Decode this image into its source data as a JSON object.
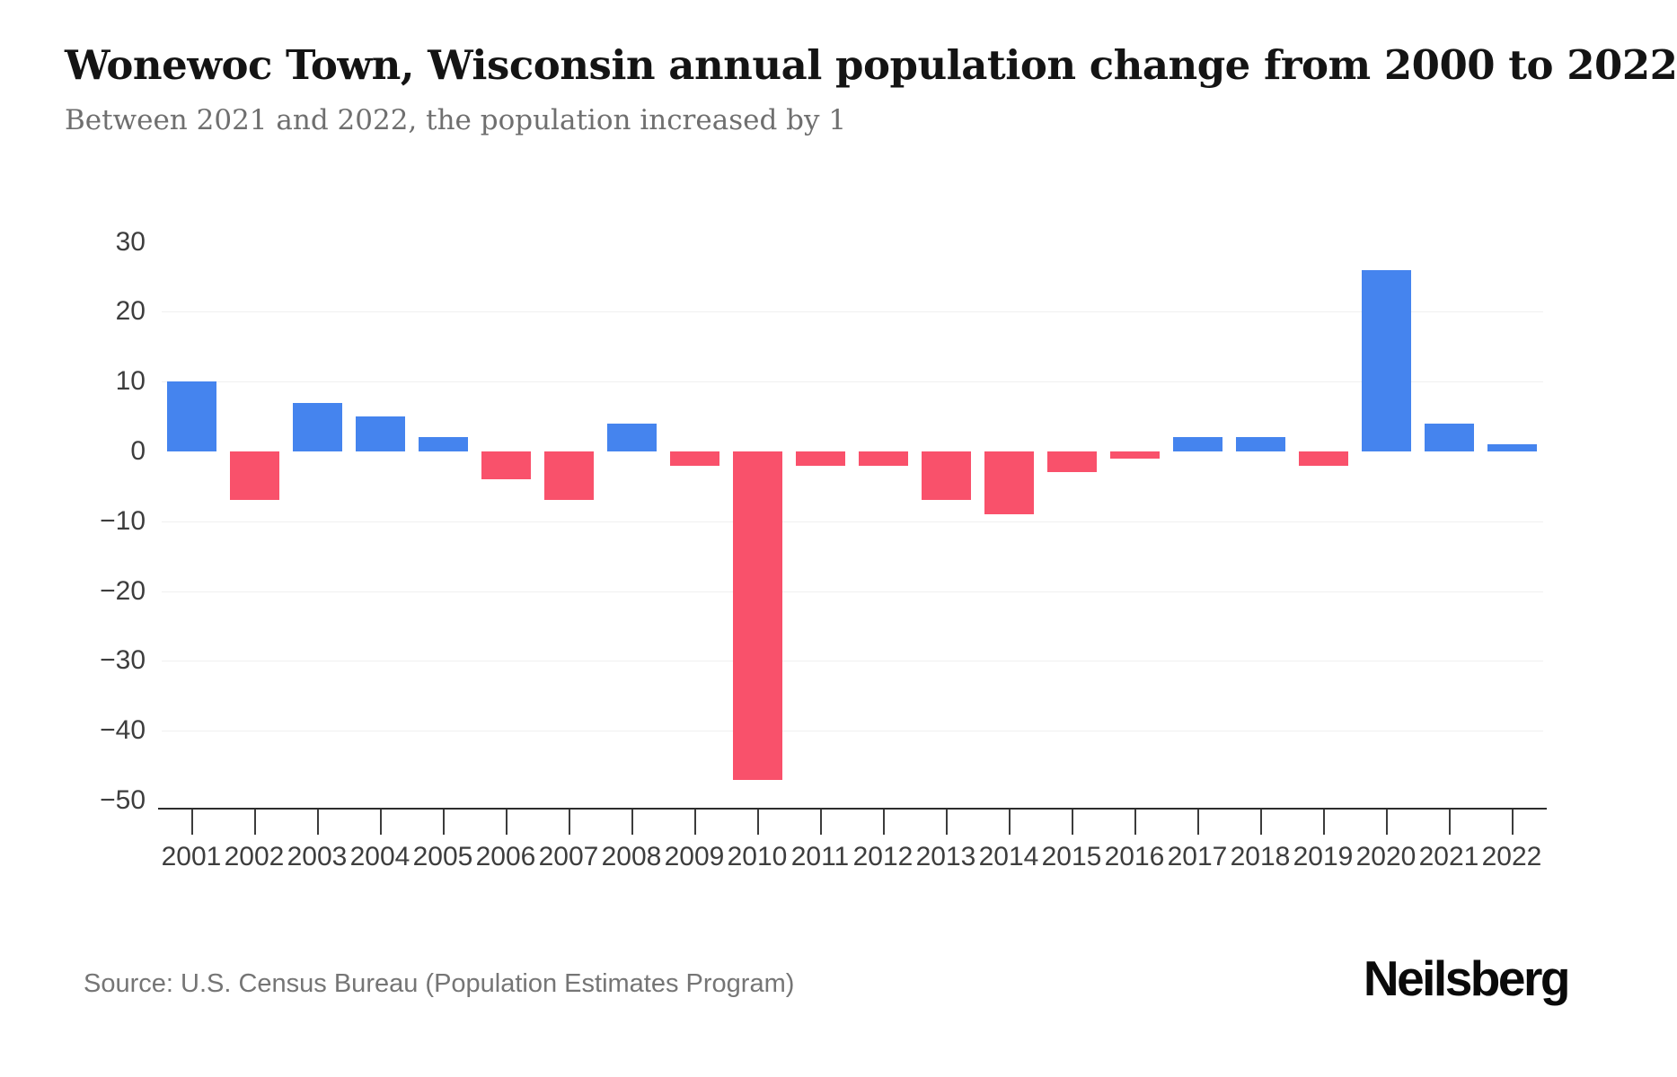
{
  "header": {
    "title": "Wonewoc Town, Wisconsin annual population change from 2000 to 2022",
    "subtitle": "Between 2021 and 2022, the population increased by 1"
  },
  "chart_data": {
    "type": "bar",
    "title": "Wonewoc Town, Wisconsin annual population change from 2000 to 2022",
    "categories": [
      "2001",
      "2002",
      "2003",
      "2004",
      "2005",
      "2006",
      "2007",
      "2008",
      "2009",
      "2010",
      "2011",
      "2012",
      "2013",
      "2014",
      "2015",
      "2016",
      "2017",
      "2018",
      "2019",
      "2020",
      "2021",
      "2022"
    ],
    "values": [
      10,
      -7,
      7,
      5,
      2,
      -4,
      -7,
      4,
      -2,
      -47,
      -2,
      -2,
      -7,
      -9,
      -3,
      -1,
      2,
      2,
      -2,
      26,
      4,
      1
    ],
    "xlabel": "",
    "ylabel": "",
    "ylim": [
      -50,
      30
    ],
    "yticks": [
      30,
      20,
      10,
      0,
      -10,
      -20,
      -30,
      -40,
      -50
    ],
    "ytick_labels": [
      "30",
      "20",
      "10",
      "0",
      "−10",
      "−20",
      "−30",
      "−40",
      "−50"
    ],
    "grid": true,
    "legend": false,
    "positive_color": "#4584ee",
    "negative_color": "#f9516b"
  },
  "footer": {
    "source": "Source: U.S. Census Bureau (Population Estimates Program)",
    "brand": "Neilsberg"
  }
}
